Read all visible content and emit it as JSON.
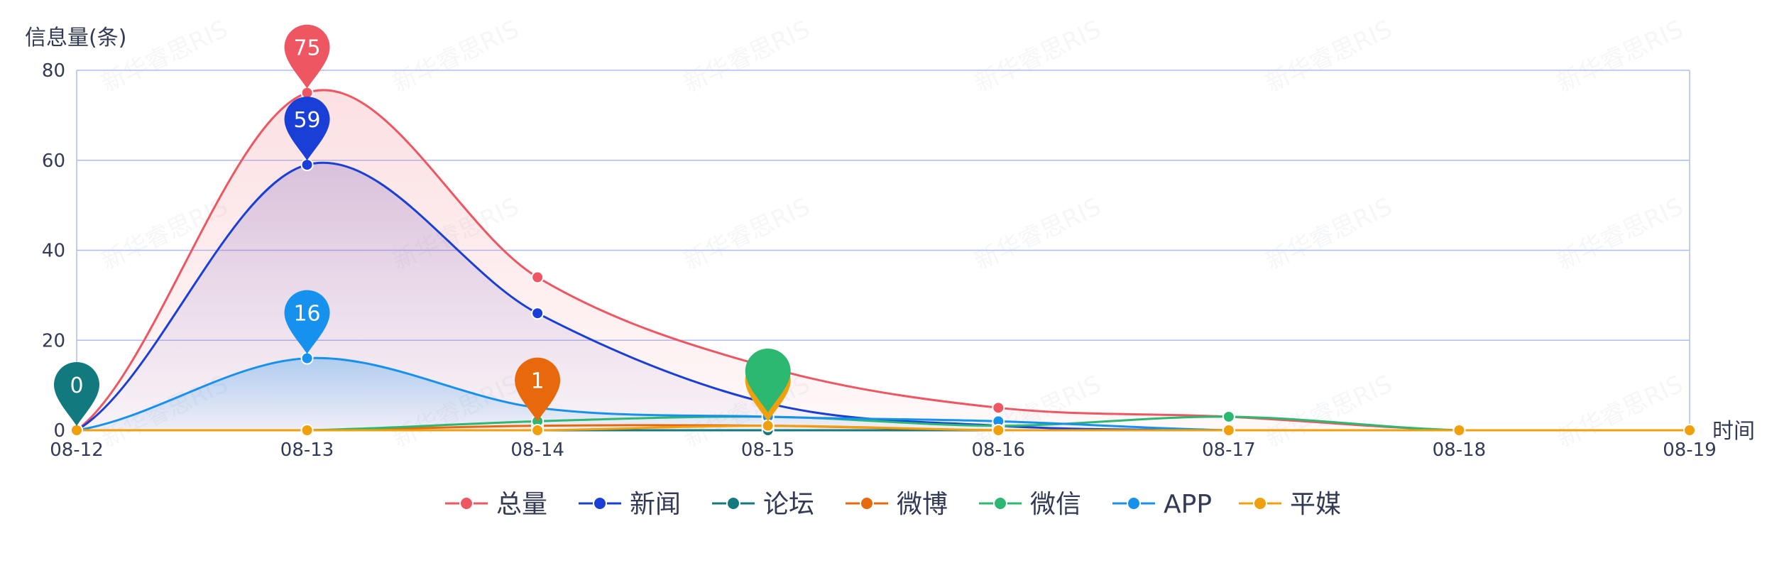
{
  "chart_data": {
    "type": "line",
    "ylabel": "信息量(条)",
    "xlabel": "时间",
    "categories": [
      "08-12",
      "08-13",
      "08-14",
      "08-15",
      "08-16",
      "08-17",
      "08-18",
      "08-19"
    ],
    "ylim": [
      0,
      80
    ],
    "yticks": [
      0,
      20,
      40,
      60,
      80
    ],
    "grid": true,
    "smooth": true,
    "legend_position": "bottom-center",
    "series": [
      {
        "name": "总量",
        "color": "#ee5662",
        "values": [
          0,
          75,
          34,
          14,
          5,
          3,
          0,
          0
        ],
        "area": true
      },
      {
        "name": "新闻",
        "color": "#1a3fd6",
        "values": [
          0,
          59,
          26,
          6,
          1,
          0,
          0,
          0
        ],
        "area": true
      },
      {
        "name": "论坛",
        "color": "#127a7e",
        "values": [
          0,
          0,
          0,
          0,
          0,
          0,
          0,
          0
        ]
      },
      {
        "name": "微博",
        "color": "#e8690c",
        "values": [
          0,
          0,
          1,
          1,
          0,
          0,
          0,
          0
        ]
      },
      {
        "name": "微信",
        "color": "#2cb871",
        "values": [
          0,
          0,
          2,
          3,
          1,
          3,
          0,
          0
        ]
      },
      {
        "name": "APP",
        "color": "#1791ee",
        "values": [
          0,
          16,
          5,
          3,
          2,
          0,
          0,
          0
        ],
        "area": true
      },
      {
        "name": "平媒",
        "color": "#f0a00c",
        "values": [
          0,
          0,
          0,
          1,
          0,
          0,
          0,
          0
        ]
      }
    ],
    "annotations": [
      {
        "series": "总量",
        "x": "08-13",
        "label": "75"
      },
      {
        "series": "新闻",
        "x": "08-13",
        "label": "59"
      },
      {
        "series": "APP",
        "x": "08-13",
        "label": "16"
      },
      {
        "series": "论坛",
        "x": "08-12",
        "label": "0"
      },
      {
        "series": "微博",
        "x": "08-14",
        "label": "1"
      },
      {
        "series": "平媒",
        "x": "08-15",
        "label": "1"
      },
      {
        "series": "微信",
        "x": "08-15",
        "label": ""
      }
    ]
  },
  "watermark": "新华睿思RIS"
}
